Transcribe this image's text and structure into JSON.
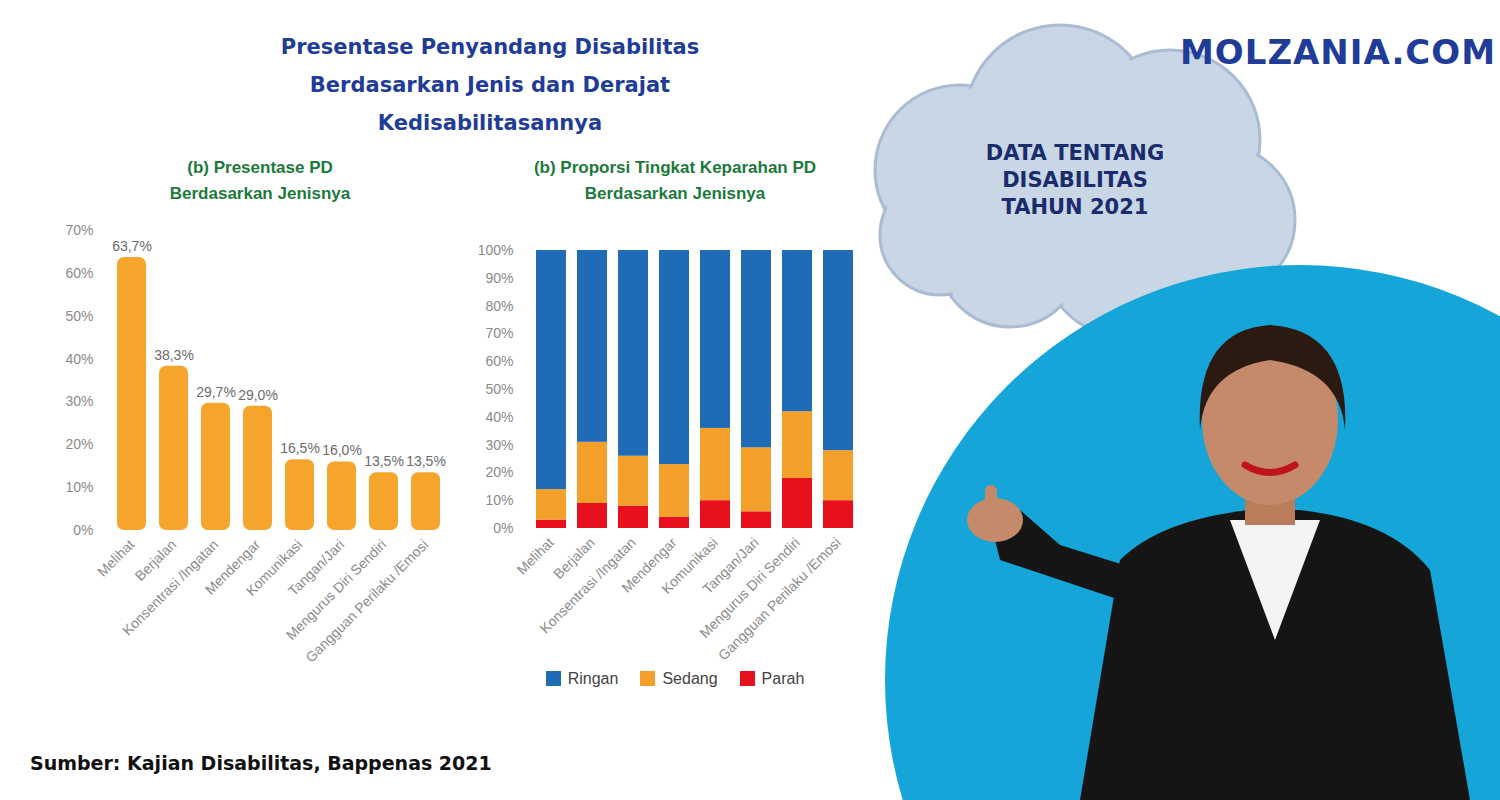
{
  "page": {
    "title": "Presentase Penyandang Disabilitas\nBerdasarkan Jenis dan Derajat\nKedisabilitasannya",
    "site": "MOLZANIA.COM",
    "banner": "DATA TENTANG\nDISABILITAS\nTAHUN 2021",
    "source": "Sumber: Kajian Disabilitas, Bappenas 2021"
  },
  "chart_data": [
    {
      "type": "bar",
      "title": "(b) Presentase PD\nBerdasarkan Jenisnya",
      "categories": [
        "Melihat",
        "Berjalan",
        "Konsentrasi /Ingatan",
        "Mendengar",
        "Komunikasi",
        "Tangan/Jari",
        "Mengurus Diri Sendiri",
        "Gangguan Perilaku /Emosi"
      ],
      "values": [
        63.7,
        38.3,
        29.7,
        29.0,
        16.5,
        16.0,
        13.5,
        13.5
      ],
      "value_labels": [
        "63,7%",
        "38,3%",
        "29,7%",
        "29,0%",
        "16,5%",
        "16,0%",
        "13,5%",
        "13,5%"
      ],
      "color": "#f5a52c",
      "ylim": [
        0,
        70
      ],
      "yticks": [
        {
          "value": 0,
          "label": "0%"
        },
        {
          "value": 10,
          "label": "10%"
        },
        {
          "value": 20,
          "label": "20%"
        },
        {
          "value": 30,
          "label": "30%"
        },
        {
          "value": 40,
          "label": "40%"
        },
        {
          "value": 50,
          "label": "50%"
        },
        {
          "value": 60,
          "label": "60%"
        },
        {
          "value": 70,
          "label": "70%"
        }
      ],
      "grid": false,
      "data_labels": true
    },
    {
      "type": "bar",
      "title": "(b) Proporsi Tingkat Keparahan PD\nBerdasarkan Jenisnya",
      "categories": [
        "Melihat",
        "Berjalan",
        "Konsentrasi /Ingatan",
        "Mendengar",
        "Komunikasi",
        "Tangan/Jari",
        "Mengurus Diri Sendiri",
        "Gangguan Perilaku /Emosi"
      ],
      "series": [
        {
          "name": "Ringan",
          "color": "#1f6bb5",
          "values": [
            86,
            69,
            74,
            77,
            64,
            71,
            58,
            72
          ]
        },
        {
          "name": "Sedang",
          "color": "#f5a02a",
          "values": [
            11,
            22,
            18,
            19,
            26,
            23,
            24,
            18
          ]
        },
        {
          "name": "Parah",
          "color": "#e8101c",
          "values": [
            3,
            9,
            8,
            4,
            10,
            6,
            18,
            10
          ]
        }
      ],
      "stacked": true,
      "ylim": [
        0,
        100
      ],
      "yticks": [
        {
          "value": 0,
          "label": "0%"
        },
        {
          "value": 10,
          "label": "10%"
        },
        {
          "value": 20,
          "label": "20%"
        },
        {
          "value": 30,
          "label": "30%"
        },
        {
          "value": 40,
          "label": "40%"
        },
        {
          "value": 50,
          "label": "50%"
        },
        {
          "value": 60,
          "label": "60%"
        },
        {
          "value": 70,
          "label": "70%"
        },
        {
          "value": 80,
          "label": "80%"
        },
        {
          "value": 90,
          "label": "90%"
        },
        {
          "value": 100,
          "label": "100%"
        }
      ],
      "grid": false,
      "legend": "bottom"
    }
  ]
}
